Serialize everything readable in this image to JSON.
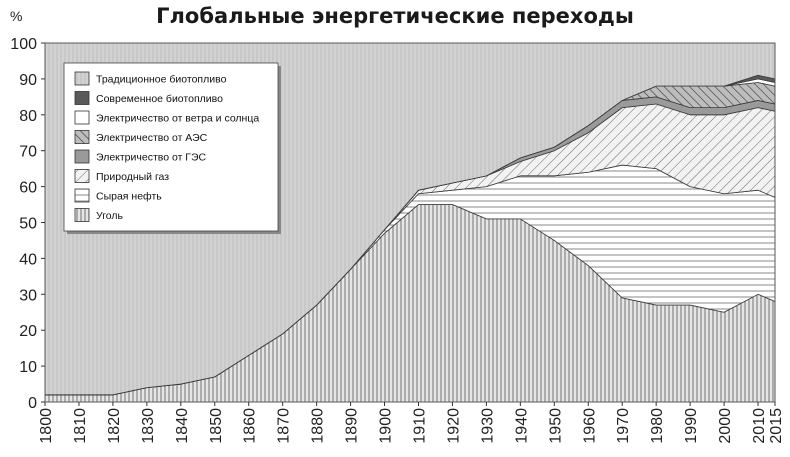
{
  "chart_data": {
    "type": "area",
    "stacked": true,
    "title": "Глобальные энергетические переходы",
    "ylabel": "%",
    "xlabel": "",
    "ylim": [
      0,
      100
    ],
    "xlim": [
      1800,
      2015
    ],
    "yticks": [
      0,
      10,
      20,
      30,
      40,
      50,
      60,
      70,
      80,
      90,
      100
    ],
    "xticks": [
      1800,
      1810,
      1820,
      1830,
      1840,
      1850,
      1860,
      1870,
      1880,
      1890,
      1900,
      1910,
      1920,
      1930,
      1940,
      1950,
      1960,
      1970,
      1980,
      1990,
      2000,
      2010,
      2015
    ],
    "x": [
      1800,
      1810,
      1820,
      1830,
      1840,
      1850,
      1860,
      1870,
      1880,
      1890,
      1900,
      1910,
      1920,
      1930,
      1940,
      1950,
      1960,
      1970,
      1980,
      1990,
      2000,
      2010,
      2015
    ],
    "series": [
      {
        "name": "Уголь",
        "pattern": "vlines",
        "values": [
          2,
          2,
          2,
          4,
          5,
          7,
          13,
          19,
          27,
          37,
          47,
          55,
          55,
          51,
          51,
          45,
          38,
          29,
          27,
          27,
          25,
          30,
          28
        ]
      },
      {
        "name": "Сырая нефть",
        "pattern": "hlines",
        "values": [
          0,
          0,
          0,
          0,
          0,
          0,
          0,
          0,
          0,
          0,
          1,
          3,
          4,
          9,
          12,
          18,
          26,
          37,
          38,
          33,
          33,
          29,
          29
        ]
      },
      {
        "name": "Природный газ",
        "pattern": "diag",
        "values": [
          0,
          0,
          0,
          0,
          0,
          0,
          0,
          0,
          0,
          0,
          0,
          1,
          2,
          3,
          4,
          7,
          11,
          16,
          18,
          20,
          22,
          23,
          24
        ]
      },
      {
        "name": "Электричество от ГЭС",
        "pattern": "grey",
        "values": [
          0,
          0,
          0,
          0,
          0,
          0,
          0,
          0,
          0,
          0,
          0,
          0,
          0,
          0,
          1,
          1,
          2,
          2,
          2,
          2,
          2,
          2,
          2
        ]
      },
      {
        "name": "Электричество от АЭС",
        "pattern": "cross",
        "values": [
          0,
          0,
          0,
          0,
          0,
          0,
          0,
          0,
          0,
          0,
          0,
          0,
          0,
          0,
          0,
          0,
          0,
          0,
          3,
          6,
          6,
          5,
          5
        ]
      },
      {
        "name": "Электричество от ветра и солнца",
        "pattern": "white",
        "values": [
          0,
          0,
          0,
          0,
          0,
          0,
          0,
          0,
          0,
          0,
          0,
          0,
          0,
          0,
          0,
          0,
          0,
          0,
          0,
          0,
          0,
          1,
          1
        ]
      },
      {
        "name": "Современное биотопливо",
        "pattern": "dark",
        "values": [
          0,
          0,
          0,
          0,
          0,
          0,
          0,
          0,
          0,
          0,
          0,
          0,
          0,
          0,
          0,
          0,
          0,
          0,
          0,
          0,
          0,
          1,
          1
        ]
      },
      {
        "name": "Традиционное биотопливо",
        "pattern": "light",
        "values": [
          98,
          98,
          98,
          96,
          95,
          93,
          87,
          81,
          73,
          63,
          52,
          41,
          39,
          37,
          32,
          29,
          23,
          16,
          12,
          12,
          12,
          9,
          10
        ]
      }
    ],
    "legend": {
      "placement": "top-left",
      "entries": [
        "Традиционное биотопливо",
        "Современное биотопливо",
        "Электричество от ветра и солнца",
        "Электричество от АЭС",
        "Электричество от ГЭС",
        "Природный газ",
        "Сырая нефть",
        "Уголь"
      ]
    }
  },
  "colors": {
    "background": "#ffffff",
    "traditional": "#d2d2d2",
    "modern_bio": "#5a5a5a",
    "hydro": "#9a9a9a",
    "line": "#333333"
  }
}
